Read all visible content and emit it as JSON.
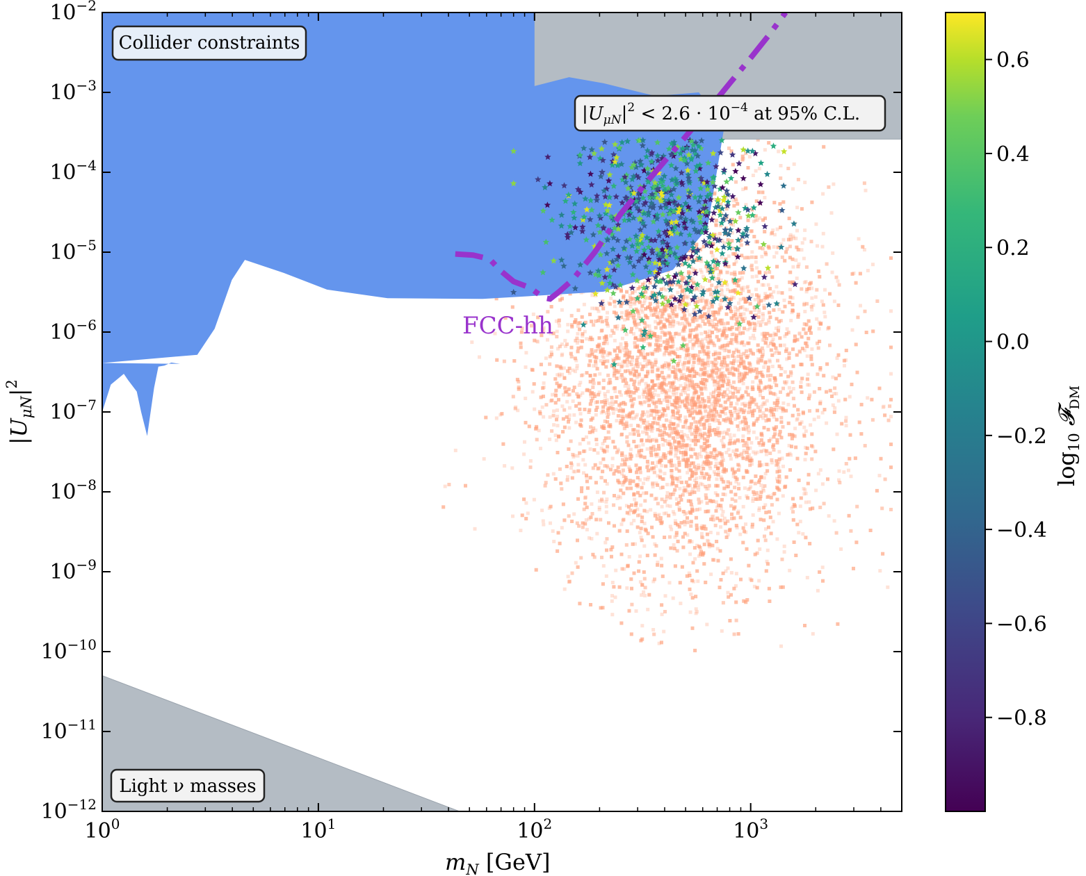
{
  "chart_data": {
    "type": "scatter",
    "xlabel": "m_N [GeV]",
    "ylabel": "|U_μN|^2",
    "x_scale": "log",
    "y_scale": "log",
    "xlim": [
      1,
      5000
    ],
    "ylim": [
      1e-12,
      0.01
    ],
    "x_ticks": [
      {
        "value": 1,
        "base": "10",
        "exp": "0"
      },
      {
        "value": 10,
        "base": "10",
        "exp": "1"
      },
      {
        "value": 100,
        "base": "10",
        "exp": "2"
      },
      {
        "value": 1000,
        "base": "10",
        "exp": "3"
      }
    ],
    "y_ticks": [
      {
        "value": 0.01,
        "base": "10",
        "exp": "−2"
      },
      {
        "value": 0.001,
        "base": "10",
        "exp": "−3"
      },
      {
        "value": 0.0001,
        "base": "10",
        "exp": "−4"
      },
      {
        "value": 1e-05,
        "base": "10",
        "exp": "−5"
      },
      {
        "value": 1e-06,
        "base": "10",
        "exp": "−6"
      },
      {
        "value": 1e-07,
        "base": "10",
        "exp": "−7"
      },
      {
        "value": 1e-08,
        "base": "10",
        "exp": "−8"
      },
      {
        "value": 1e-09,
        "base": "10",
        "exp": "−9"
      },
      {
        "value": 1e-10,
        "base": "10",
        "exp": "−10"
      },
      {
        "value": 1e-11,
        "base": "10",
        "exp": "−11"
      },
      {
        "value": 1e-12,
        "base": "10",
        "exp": "−12"
      }
    ],
    "colorbar": {
      "label": "log10 F_DM",
      "colormap": "viridis",
      "range": [
        -1.0,
        0.7
      ],
      "ticks": [
        {
          "value": 0.6,
          "label": "0.6"
        },
        {
          "value": 0.4,
          "label": "0.4"
        },
        {
          "value": 0.2,
          "label": "0.2"
        },
        {
          "value": 0.0,
          "label": "0.0"
        },
        {
          "value": -0.2,
          "label": "−0.2"
        },
        {
          "value": -0.4,
          "label": "−0.4"
        },
        {
          "value": -0.6,
          "label": "−0.6"
        },
        {
          "value": -0.8,
          "label": "−0.8"
        }
      ]
    },
    "regions": [
      {
        "name": "Collider constraints",
        "color": "#6495ed",
        "boundary": [
          [
            1,
            0.01
          ],
          [
            5.0,
            0.01
          ],
          [
            5.0,
            0.0012
          ],
          [
            5.4,
            0.00155
          ],
          [
            5.8,
            0.0013
          ],
          [
            6.4,
            0.0009
          ],
          [
            6.9,
            0.001
          ],
          [
            7.2,
            0.0004
          ],
          [
            7.0,
            2e-05
          ],
          [
            6.6,
            6e-06
          ],
          [
            5.8,
            3.2e-06
          ],
          [
            4.4,
            2.6e-06
          ],
          [
            3.3,
            2.65e-06
          ],
          [
            2.6,
            3.4e-06
          ],
          [
            2.1,
            5.5e-06
          ],
          [
            1.65,
            8e-06
          ],
          [
            1.5,
            4.5e-06
          ],
          [
            1.3,
            1.1e-06
          ],
          [
            1.1,
            5.2e-07
          ],
          [
            1.0,
            4.1e-07
          ],
          [
            0.9,
            4e-07
          ],
          [
            0.8,
            4.15e-07
          ],
          [
            0.72,
            3.8e-07
          ],
          [
            0.65,
            3.7e-07
          ],
          [
            0.6,
            2e-07
          ],
          [
            0.52,
            5e-08
          ],
          [
            0.45,
            1e-07
          ],
          [
            0.4,
            1.8e-07
          ],
          [
            0.3,
            2.5e-07
          ],
          [
            0.25,
            3e-07
          ],
          [
            0.1,
            2.2e-07
          ],
          [
            0.0,
            1e-07
          ],
          [
            0.0,
            0.01
          ]
        ],
        "coordinate_mode": "log10(x)-scaled"
      }
    ],
    "bounds": [
      {
        "name": "|U_μN|^2 < 2.6·10^-4 at 95% C.L.",
        "y": 0.00026,
        "color": "#b4bcc4"
      },
      {
        "name": "Light ν masses",
        "color": "#b4bcc4",
        "line": [
          [
            1,
            5e-11
          ],
          [
            45,
            1e-12
          ]
        ]
      }
    ],
    "fcc_hh": {
      "name": "FCC-hh",
      "color": "#9933cc",
      "x": [
        43,
        52,
        62,
        70,
        80,
        95,
        110,
        118,
        130,
        150,
        190,
        250,
        330,
        450,
        600,
        800,
        1000,
        1200,
        1450
      ],
      "y": [
        9.5e-06,
        9.2e-06,
        8.2e-06,
        5.8e-06,
        4.3e-06,
        3.6e-06,
        2.7e-06,
        2.6e-06,
        3.2e-06,
        4.5e-06,
        1e-05,
        3e-05,
        7.5e-05,
        0.0002,
        0.0005,
        0.0013,
        0.0027,
        0.005,
        0.01
      ]
    },
    "background_points": {
      "color": "#ffa07a",
      "description_count": 9000,
      "x_range": [
        10,
        5000
      ],
      "y_range": [
        1e-10,
        0.00026
      ]
    },
    "star_points": {
      "count": 700,
      "x_range": [
        80,
        2200
      ],
      "y_range": [
        4e-08,
        0.00026
      ]
    }
  },
  "labels": {
    "collider_box": "Collider constraints",
    "bound_box": "|U",
    "bound_box_sub": "μN",
    "bound_box_rest": "|",
    "bound_box_sup": "2",
    "bound_box_tail": " < 2.6 · 10",
    "bound_box_tail_sup": "−4",
    "bound_box_end": " at 95% C.L.",
    "light_box": "Light ν masses",
    "fcc_label": "FCC-hh",
    "x_axis_main": "m",
    "x_axis_sub": "N",
    "x_axis_unit": " [GeV]",
    "y_axis_main": "|U",
    "y_axis_sub": "μN",
    "y_axis_tail": "|",
    "y_axis_sup": "2",
    "cbar_main": "log",
    "cbar_sub": "10",
    "cbar_f": " 𝓕",
    "cbar_fsub": "DM"
  }
}
